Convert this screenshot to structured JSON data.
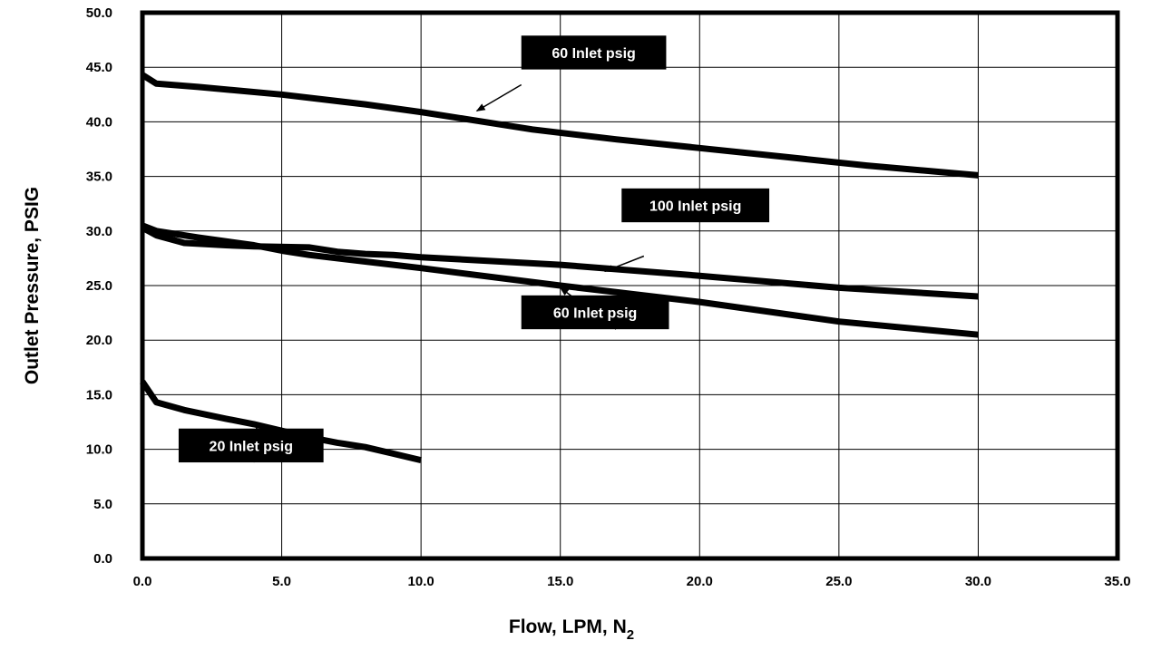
{
  "chart_data": {
    "type": "line",
    "title": "",
    "xlabel": "Flow, LPM, N",
    "xlabel_subscript": "2",
    "ylabel": "Outlet Pressure, PSIG",
    "xlim": [
      0,
      35
    ],
    "ylim": [
      0,
      50
    ],
    "grid": true,
    "legend": "none",
    "x_ticks": [
      "0.0",
      "5.0",
      "10.0",
      "15.0",
      "20.0",
      "25.0",
      "30.0",
      "35.0"
    ],
    "y_ticks": [
      "0.0",
      "5.0",
      "10.0",
      "15.0",
      "20.0",
      "25.0",
      "30.0",
      "35.0",
      "40.0",
      "45.0",
      "50.0"
    ],
    "series": [
      {
        "name": "60 Inlet psig",
        "label_index": 0,
        "points": [
          [
            0,
            44.3
          ],
          [
            0.5,
            43.5
          ],
          [
            2,
            43.2
          ],
          [
            5,
            42.5
          ],
          [
            8,
            41.6
          ],
          [
            10,
            40.9
          ],
          [
            12,
            40.1
          ],
          [
            14,
            39.3
          ],
          [
            17,
            38.4
          ],
          [
            20,
            37.6
          ],
          [
            23,
            36.8
          ],
          [
            26,
            36.0
          ],
          [
            30,
            35.1
          ]
        ]
      },
      {
        "name": "100 Inlet psig",
        "label_index": 1,
        "points": [
          [
            0,
            30.3
          ],
          [
            0.5,
            29.6
          ],
          [
            1.5,
            28.9
          ],
          [
            3,
            28.7
          ],
          [
            4,
            28.6
          ],
          [
            6,
            28.5
          ],
          [
            7,
            28.1
          ],
          [
            8,
            27.9
          ],
          [
            9,
            27.8
          ],
          [
            10,
            27.6
          ],
          [
            15,
            26.9
          ],
          [
            20,
            25.9
          ],
          [
            25,
            24.8
          ],
          [
            30,
            24.0
          ]
        ]
      },
      {
        "name": "60 Inlet psig",
        "label_index": 2,
        "points": [
          [
            0,
            30.5
          ],
          [
            0.5,
            30.0
          ],
          [
            2,
            29.4
          ],
          [
            4,
            28.7
          ],
          [
            5,
            28.2
          ],
          [
            6,
            27.8
          ],
          [
            8,
            27.2
          ],
          [
            10,
            26.6
          ],
          [
            15,
            25.0
          ],
          [
            20,
            23.5
          ],
          [
            25,
            21.7
          ],
          [
            30,
            20.5
          ]
        ]
      },
      {
        "name": "20 Inlet psig",
        "label_index": 3,
        "points": [
          [
            0,
            16.2
          ],
          [
            0.5,
            14.3
          ],
          [
            1.5,
            13.6
          ],
          [
            3,
            12.8
          ],
          [
            4,
            12.3
          ],
          [
            5,
            11.7
          ],
          [
            6,
            11.1
          ],
          [
            7,
            10.6
          ],
          [
            8,
            10.2
          ],
          [
            9,
            9.6
          ],
          [
            10,
            9.0
          ]
        ]
      }
    ],
    "annotations": [
      {
        "text": "60 Inlet psig",
        "box_x": 13.6,
        "box_y": 44.8,
        "box_w": 5.2,
        "box_h": 3.1,
        "arrow_from": [
          13.6,
          43.4
        ],
        "arrow_to": [
          12.0,
          41.0
        ]
      },
      {
        "text": "100 Inlet psig",
        "box_x": 17.2,
        "box_y": 30.8,
        "box_w": 5.3,
        "box_h": 3.1,
        "arrow_from": [
          18.0,
          27.7
        ],
        "arrow_to": [
          16.6,
          26.3
        ]
      },
      {
        "text": "60 Inlet psig",
        "box_x": 13.6,
        "box_y": 21.0,
        "box_w": 5.3,
        "box_h": 3.1,
        "arrow_from": [
          17.0,
          21.0
        ],
        "arrow_to": [
          15.0,
          24.8
        ]
      },
      {
        "text": "20 Inlet psig",
        "box_x": 1.3,
        "box_y": 8.8,
        "box_w": 5.2,
        "box_h": 3.1,
        "arrow_from": [
          4.0,
          8.8
        ],
        "arrow_to": [
          4.1,
          12.0
        ]
      }
    ]
  }
}
